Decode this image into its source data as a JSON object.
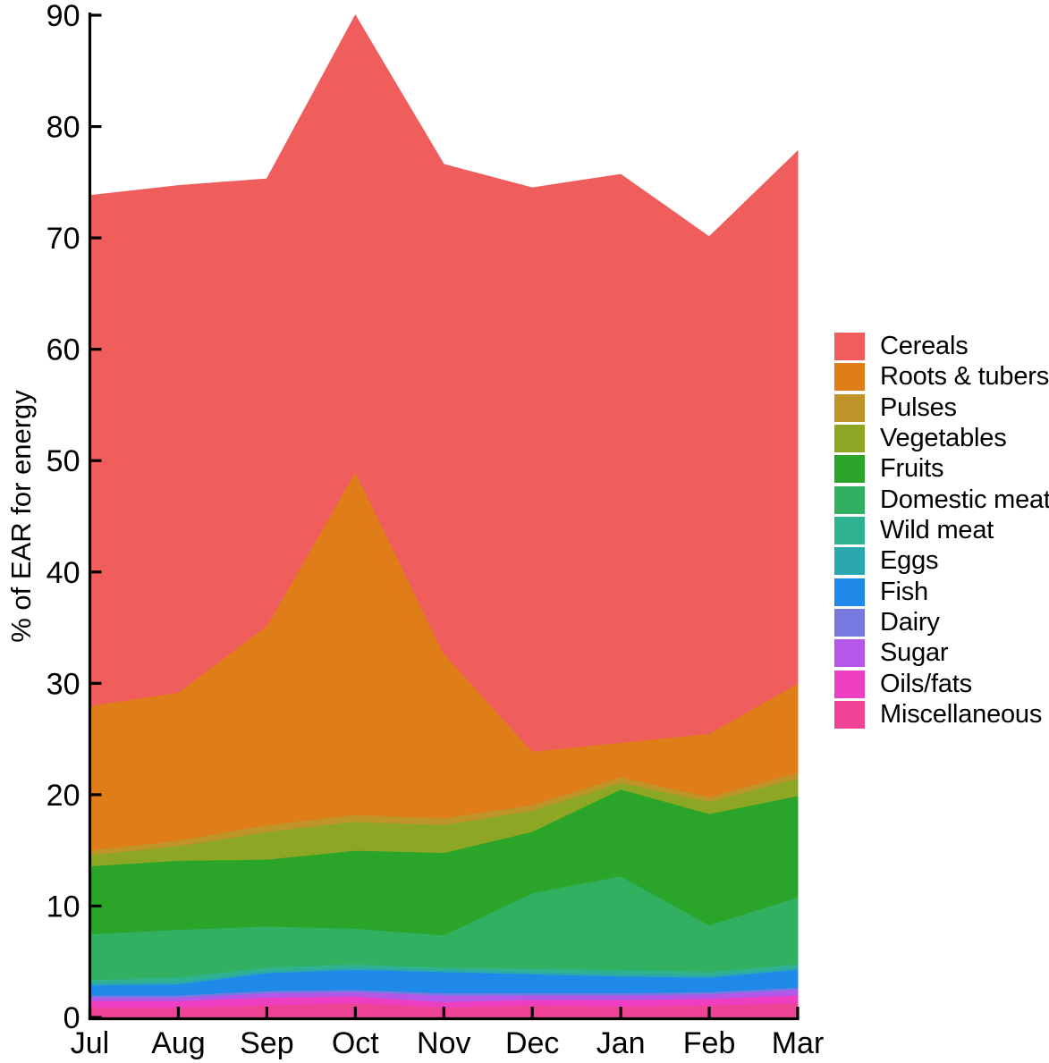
{
  "chart_data": {
    "type": "area",
    "stacked": true,
    "title": "",
    "xlabel": "",
    "ylabel": "% of EAR for energy",
    "categories": [
      "Jul",
      "Aug",
      "Sep",
      "Oct",
      "Nov",
      "Dec",
      "Jan",
      "Feb",
      "Mar"
    ],
    "y_ticks": [
      0,
      10,
      20,
      30,
      40,
      50,
      60,
      70,
      80,
      90
    ],
    "ylim": [
      0,
      90
    ],
    "grid": false,
    "legend_position": "right",
    "axis_color": "#000000",
    "text_color": "#000000",
    "series": [
      {
        "name": "Cereals",
        "color": "#EF5D5D",
        "values": [
          45.8,
          45.5,
          40.1,
          41.0,
          43.9,
          50.6,
          51.0,
          44.6,
          47.8
        ]
      },
      {
        "name": "Roots & tubers",
        "color": "#DF7E18",
        "values": [
          13.0,
          13.3,
          17.9,
          30.8,
          14.8,
          4.8,
          3.1,
          5.7,
          8.0
        ]
      },
      {
        "name": "Pulses",
        "color": "#BF9428",
        "values": [
          0.4,
          0.5,
          0.6,
          0.6,
          0.6,
          0.5,
          0.5,
          0.4,
          0.5
        ]
      },
      {
        "name": "Vegetables",
        "color": "#8DA725",
        "values": [
          1.0,
          1.3,
          2.5,
          2.6,
          2.5,
          1.9,
          0.6,
          1.1,
          1.6
        ]
      },
      {
        "name": "Fruits",
        "color": "#2AA52A",
        "values": [
          6.1,
          6.2,
          6.0,
          7.0,
          7.4,
          5.5,
          7.8,
          10.0,
          9.1
        ]
      },
      {
        "name": "Domestic meat",
        "color": "#31B061",
        "values": [
          4.1,
          4.3,
          3.7,
          3.2,
          2.9,
          6.8,
          8.4,
          4.2,
          6.0
        ]
      },
      {
        "name": "Wild meat",
        "color": "#2EB290",
        "values": [
          0.3,
          0.4,
          0.3,
          0.3,
          0.2,
          0.3,
          0.4,
          0.3,
          0.3
        ]
      },
      {
        "name": "Eggs",
        "color": "#2AA8AE",
        "values": [
          0.2,
          0.2,
          0.2,
          0.2,
          0.2,
          0.2,
          0.2,
          0.2,
          0.2
        ]
      },
      {
        "name": "Fish",
        "color": "#1F89E9",
        "values": [
          0.9,
          1.0,
          1.6,
          1.8,
          1.9,
          1.7,
          1.5,
          1.3,
          1.6
        ]
      },
      {
        "name": "Dairy",
        "color": "#7779E1",
        "values": [
          0.2,
          0.2,
          0.2,
          0.2,
          0.2,
          0.2,
          0.2,
          0.2,
          0.2
        ]
      },
      {
        "name": "Sugar",
        "color": "#B557E9",
        "values": [
          0.3,
          0.3,
          0.4,
          0.4,
          0.6,
          0.4,
          0.4,
          0.4,
          0.5
        ]
      },
      {
        "name": "Oils/fats",
        "color": "#EE3EC1",
        "values": [
          0.6,
          0.6,
          0.7,
          0.6,
          0.5,
          0.5,
          0.6,
          0.6,
          0.7
        ]
      },
      {
        "name": "Miscellaneous",
        "color": "#EF4496",
        "values": [
          0.9,
          0.9,
          1.1,
          1.3,
          0.9,
          1.1,
          1.0,
          1.1,
          1.3
        ]
      }
    ],
    "stack_order_note": "stacked bottom-to-top: Miscellaneous, Oils/fats, Sugar, Dairy, Fish, Eggs, Wild meat, Domestic meat, Fruits, Vegetables, Pulses, Roots & tubers, Cereals"
  }
}
